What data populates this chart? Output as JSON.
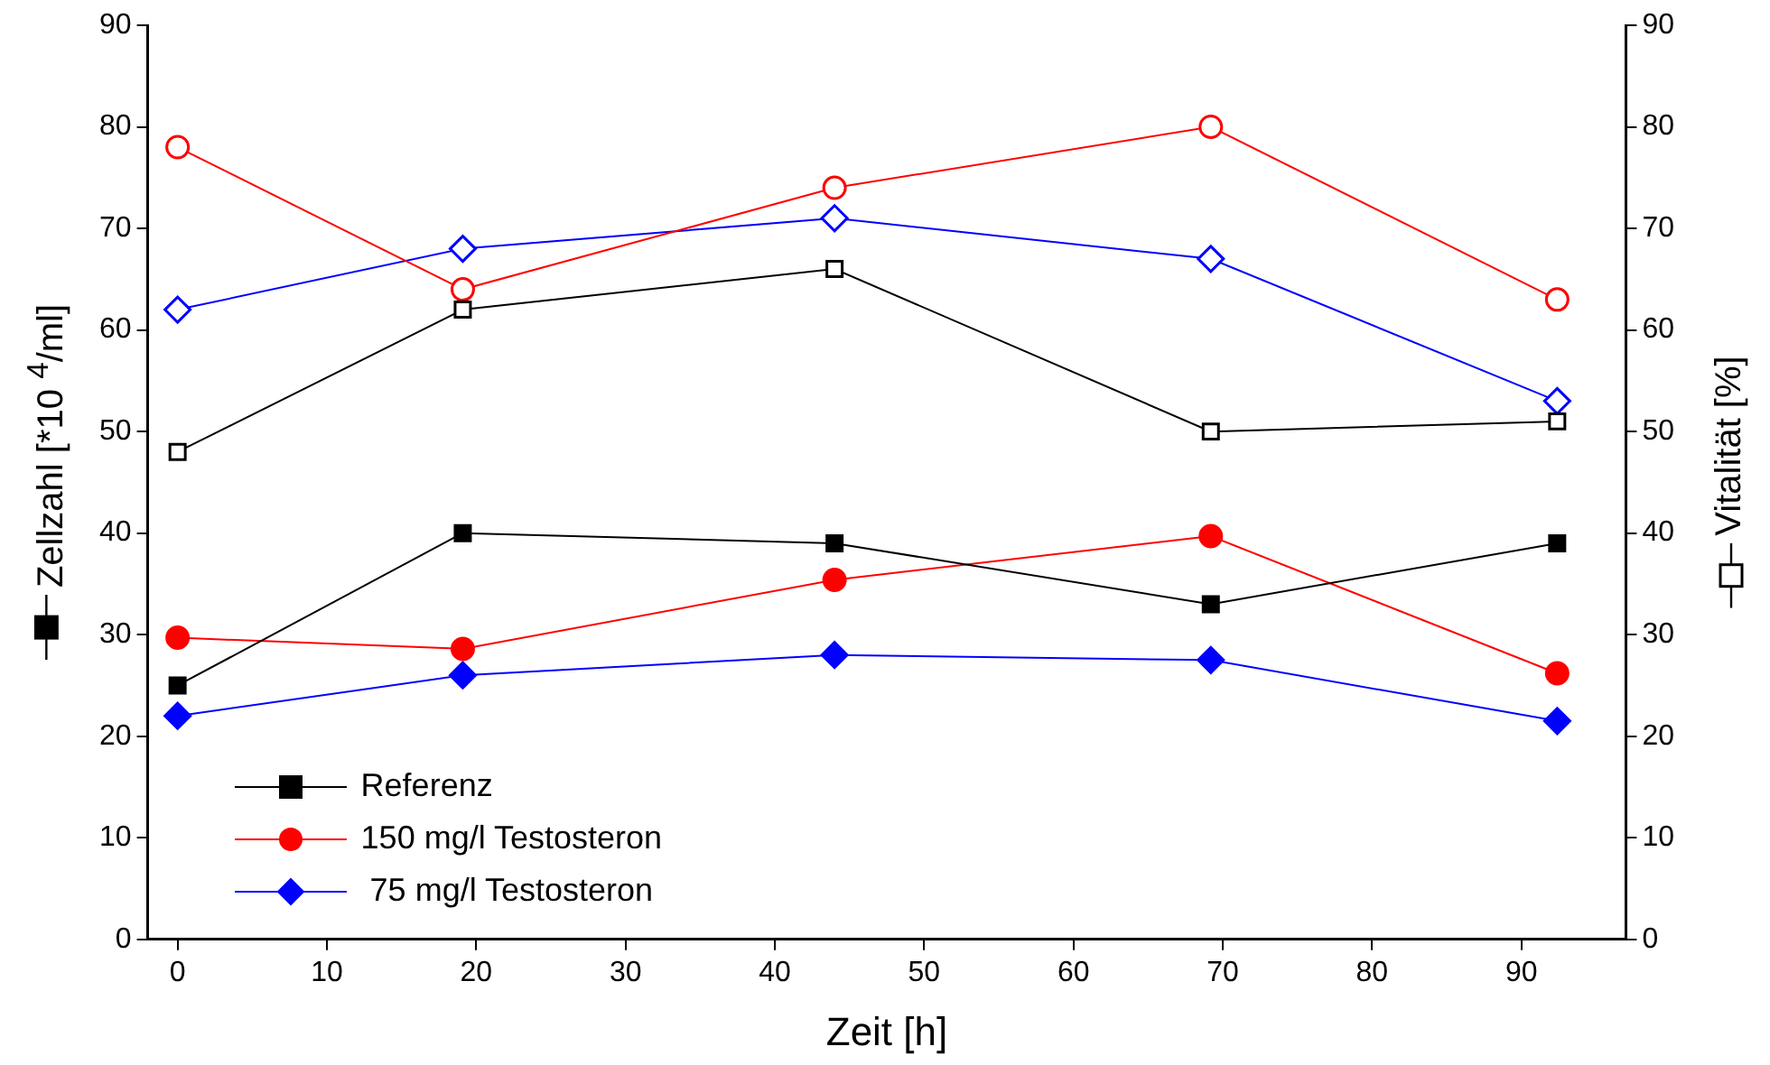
{
  "chart_data": {
    "type": "line",
    "xlabel": "Zeit [h]",
    "ylabel": "Zellzahl [*10 $^{4}$/ml]",
    "y2label": "Vitalität [%]",
    "x": [
      0,
      19.1,
      44.0,
      69.2,
      92.4
    ],
    "series": [
      {
        "name": "Referenz",
        "color": "#000000",
        "marker": "square",
        "values": [
          25,
          40,
          39,
          33,
          39
        ]
      },
      {
        "name": "150 mg/l Testosteron",
        "color": "#ff0000",
        "marker": "circle",
        "values": [
          29.7,
          28.6,
          35.4,
          39.7,
          26.2
        ]
      },
      {
        "name": " 75 mg/l Testosteron",
        "color": "#0000ff",
        "marker": "diamond",
        "values": [
          22,
          26,
          28,
          27.5,
          21.5
        ]
      },
      {
        "color": "#000000",
        "marker": "square",
        "axis": "y2",
        "values": [
          48,
          62,
          66,
          50,
          51
        ]
      },
      {
        "color": "#ff0000",
        "marker": "circle",
        "axis": "y2",
        "values": [
          78,
          64,
          74,
          80,
          63
        ]
      },
      {
        "color": "#0000ff",
        "marker": "diamond",
        "axis": "y2",
        "values": [
          62,
          68,
          71,
          67,
          53
        ]
      }
    ],
    "xlim": [
      -2,
      97
    ],
    "xticks": [
      0,
      10,
      20,
      30,
      40,
      50,
      60,
      70,
      80,
      90
    ],
    "ylim": [
      0,
      90
    ],
    "yticks": [
      0,
      10,
      20,
      30,
      40,
      50,
      60,
      70,
      80,
      90
    ],
    "y2lim": [
      0,
      90
    ],
    "y2ticks": [
      0,
      10,
      20,
      30,
      40,
      50,
      60,
      70,
      80,
      90
    ],
    "grid": false,
    "legend": "bottom left"
  }
}
